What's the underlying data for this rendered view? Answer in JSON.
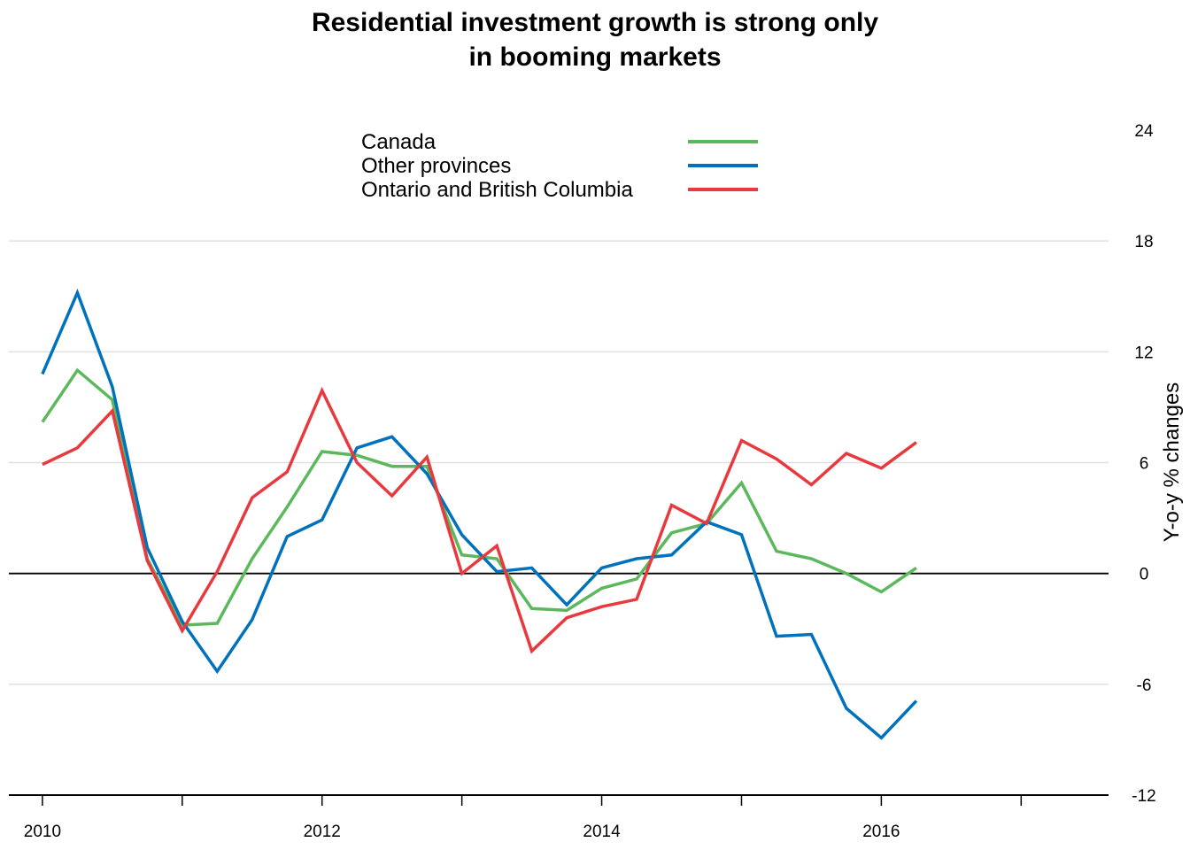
{
  "chart_data": {
    "type": "line",
    "title_lines": [
      "Residential investment growth is strong only",
      "in booming markets"
    ],
    "ylabel": "Y-o-y % changes",
    "xlabel": "",
    "ylim": [
      -12,
      24
    ],
    "yticks": [
      -12,
      -6,
      0,
      6,
      12,
      18,
      24
    ],
    "ytick_labels": [
      "-12",
      "-6",
      "0",
      "6",
      "12",
      "18",
      "24"
    ],
    "xlim": [
      2009.76,
      2017.625
    ],
    "xticks_major": [
      2010,
      2012,
      2014,
      2016
    ],
    "xtick_labels": [
      "2010",
      "2012",
      "2014",
      "2016"
    ],
    "xticks_minor": [
      2011,
      2013,
      2015,
      2017
    ],
    "grid": "horizontal",
    "zero_line": true,
    "legend_position": "top-center",
    "x": [
      2010.0,
      2010.25,
      2010.5,
      2010.75,
      2011.0,
      2011.25,
      2011.5,
      2011.75,
      2012.0,
      2012.25,
      2012.5,
      2012.75,
      2013.0,
      2013.25,
      2013.5,
      2013.75,
      2014.0,
      2014.25,
      2014.5,
      2014.75,
      2015.0,
      2015.25,
      2015.5,
      2015.75,
      2016.0,
      2016.25
    ],
    "series": [
      {
        "name": "Canada",
        "color": "#5cb85c",
        "values": [
          8.2,
          11.0,
          9.4,
          0.8,
          -2.8,
          -2.7,
          0.8,
          3.6,
          6.6,
          6.4,
          5.8,
          5.8,
          1.0,
          0.8,
          -1.9,
          -2.0,
          -0.8,
          -0.3,
          2.2,
          2.7,
          4.9,
          1.2,
          0.8,
          0.0,
          -1.0,
          0.3
        ]
      },
      {
        "name": "Other provinces",
        "color": "#0072bd",
        "values": [
          10.8,
          15.2,
          10.1,
          1.4,
          -2.6,
          -5.3,
          -2.5,
          2.0,
          2.9,
          6.8,
          7.4,
          5.4,
          2.1,
          0.1,
          0.3,
          -1.7,
          0.3,
          0.8,
          1.0,
          2.8,
          2.1,
          -3.4,
          -3.3,
          -7.3,
          -8.9,
          -6.9
        ]
      },
      {
        "name": "Ontario and British Columbia",
        "color": "#e8393f",
        "values": [
          5.9,
          6.8,
          8.8,
          0.7,
          -3.1,
          0.1,
          4.1,
          5.5,
          9.9,
          6.0,
          4.2,
          6.3,
          0.0,
          1.5,
          -4.2,
          -2.4,
          -1.8,
          -1.4,
          3.7,
          2.7,
          7.2,
          6.2,
          4.8,
          6.5,
          5.7,
          7.1
        ]
      }
    ]
  }
}
